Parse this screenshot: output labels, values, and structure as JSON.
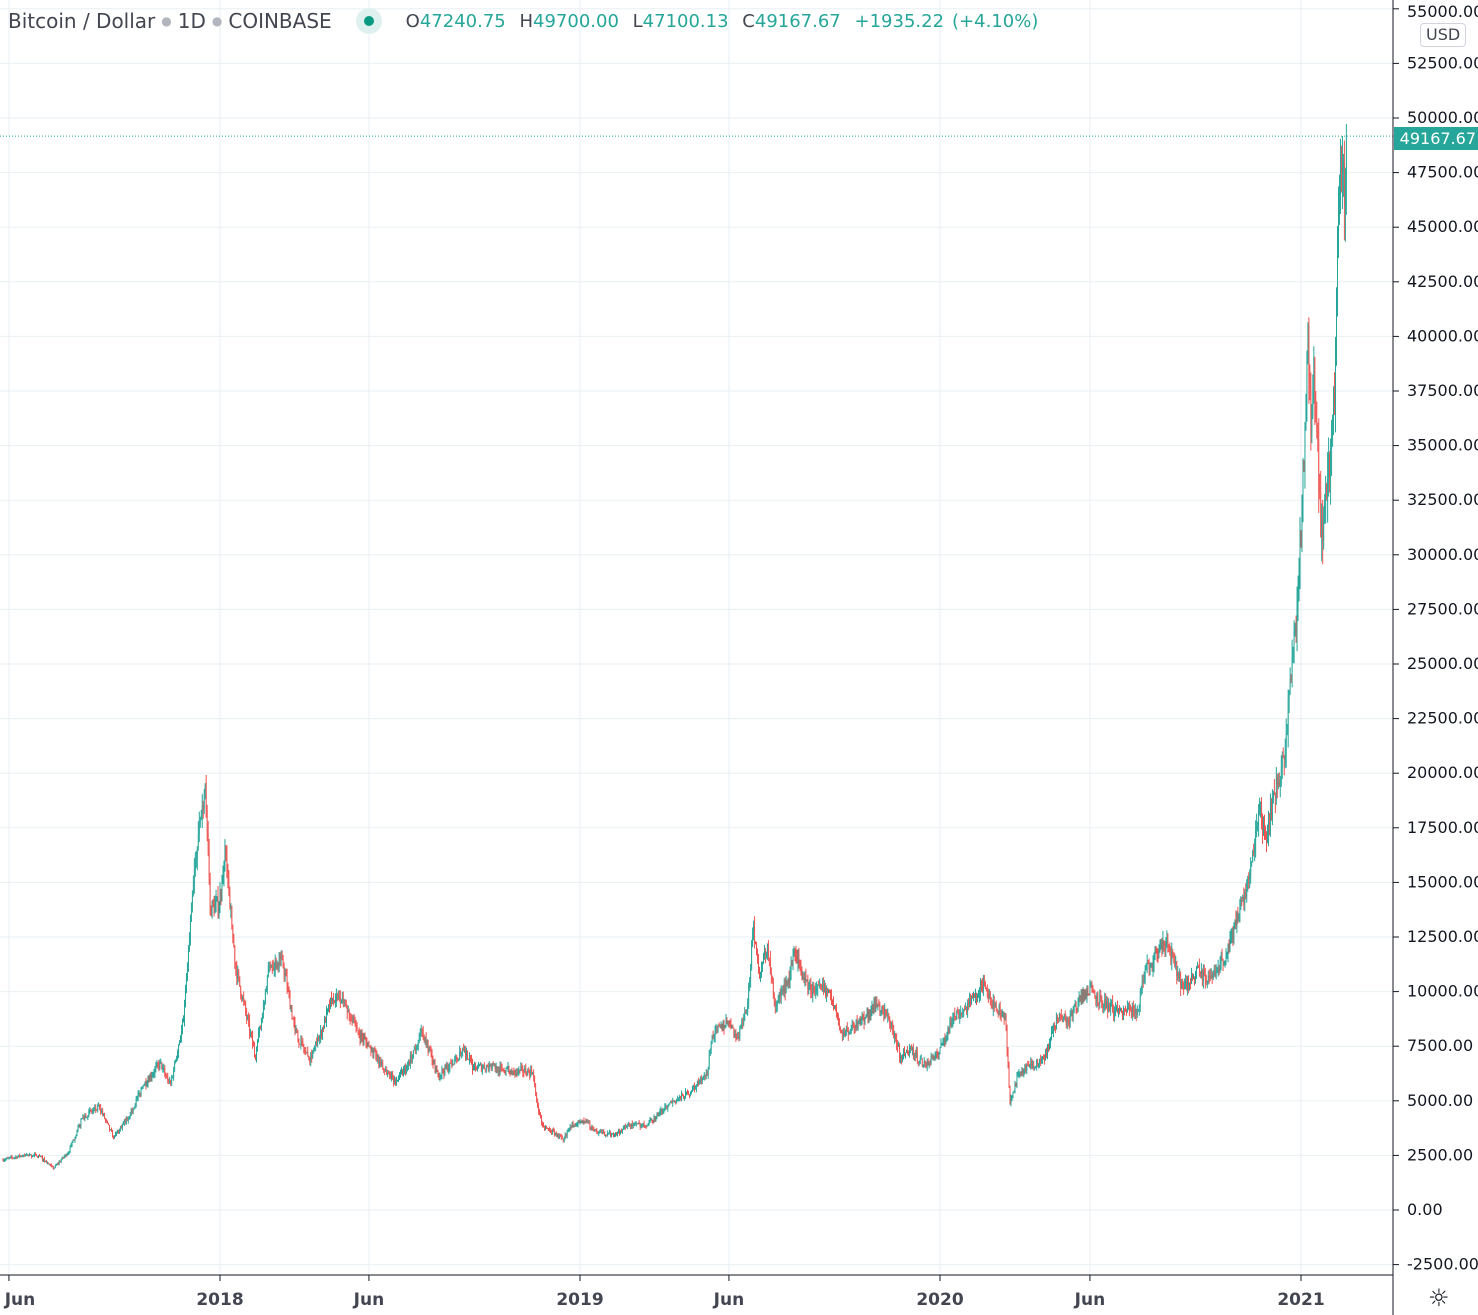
{
  "header": {
    "symbol": "Bitcoin / Dollar",
    "interval": "1D",
    "exchange": "COINBASE",
    "ohlc": {
      "o_label": "O",
      "o": "47240.75",
      "h_label": "H",
      "h": "49700.00",
      "l_label": "L",
      "l": "47100.13",
      "c_label": "C",
      "c": "49167.67",
      "change": "+1935.22",
      "change_pct": "(+4.10%)"
    }
  },
  "currency": "USD",
  "last_price_label": "49167.67",
  "colors": {
    "up": "#26a69a",
    "down": "#ef5350",
    "grid": "#e9eff3",
    "axis": "#131722"
  },
  "icons": {
    "settings": "gear-icon"
  },
  "chart_data": {
    "type": "candlestick",
    "title": "Bitcoin / Dollar · 1D · COINBASE",
    "ylim": [
      -2500,
      55000
    ],
    "y_ticks": [
      "55000.00",
      "52500.00",
      "50000.00",
      "47500.00",
      "45000.00",
      "42500.00",
      "40000.00",
      "37500.00",
      "35000.00",
      "32500.00",
      "30000.00",
      "27500.00",
      "25000.00",
      "22500.00",
      "20000.00",
      "17500.00",
      "15000.00",
      "12500.00",
      "10000.00",
      "7500.00",
      "5000.00",
      "2500.00",
      "0.00",
      "-2500.00"
    ],
    "x_ticks": [
      {
        "label": "Jun",
        "date": "2017-06-01"
      },
      {
        "label": "2018",
        "date": "2018-01-01"
      },
      {
        "label": "Jun",
        "date": "2018-06-01"
      },
      {
        "label": "2019",
        "date": "2019-01-01"
      },
      {
        "label": "Jun",
        "date": "2019-06-01"
      },
      {
        "label": "2020",
        "date": "2020-01-01"
      },
      {
        "label": "Jun",
        "date": "2020-06-01"
      },
      {
        "label": "2021",
        "date": "2021-01-01"
      }
    ],
    "last_price": 49167.67,
    "approx_closes": [
      [
        "2017-05-25",
        2300
      ],
      [
        "2017-06-15",
        2500
      ],
      [
        "2017-07-01",
        2500
      ],
      [
        "2017-07-16",
        1900
      ],
      [
        "2017-08-01",
        2700
      ],
      [
        "2017-08-15",
        4300
      ],
      [
        "2017-09-01",
        4700
      ],
      [
        "2017-09-15",
        3300
      ],
      [
        "2017-10-01",
        4300
      ],
      [
        "2017-10-15",
        5700
      ],
      [
        "2017-11-01",
        6700
      ],
      [
        "2017-11-12",
        5800
      ],
      [
        "2017-11-25",
        8700
      ],
      [
        "2017-12-07",
        16000
      ],
      [
        "2017-12-17",
        19500
      ],
      [
        "2017-12-22",
        13800
      ],
      [
        "2017-12-31",
        14000
      ],
      [
        "2018-01-07",
        16500
      ],
      [
        "2018-01-16",
        11300
      ],
      [
        "2018-02-06",
        7000
      ],
      [
        "2018-02-20",
        11200
      ],
      [
        "2018-03-05",
        11500
      ],
      [
        "2018-03-18",
        8200
      ],
      [
        "2018-04-01",
        6900
      ],
      [
        "2018-04-12",
        7900
      ],
      [
        "2018-04-24",
        9600
      ],
      [
        "2018-05-05",
        9700
      ],
      [
        "2018-05-20",
        8200
      ],
      [
        "2018-06-01",
        7500
      ],
      [
        "2018-06-15",
        6500
      ],
      [
        "2018-06-29",
        5900
      ],
      [
        "2018-07-10",
        6600
      ],
      [
        "2018-07-25",
        8200
      ],
      [
        "2018-08-10",
        6200
      ],
      [
        "2018-08-25",
        6700
      ],
      [
        "2018-09-05",
        7300
      ],
      [
        "2018-09-15",
        6500
      ],
      [
        "2018-10-01",
        6600
      ],
      [
        "2018-10-15",
        6400
      ],
      [
        "2018-11-01",
        6400
      ],
      [
        "2018-11-14",
        6300
      ],
      [
        "2018-11-20",
        4500
      ],
      [
        "2018-11-25",
        3800
      ],
      [
        "2018-12-07",
        3500
      ],
      [
        "2018-12-15",
        3200
      ],
      [
        "2018-12-24",
        4000
      ],
      [
        "2019-01-07",
        4000
      ],
      [
        "2019-01-20",
        3550
      ],
      [
        "2019-02-05",
        3450
      ],
      [
        "2019-02-20",
        3900
      ],
      [
        "2019-03-10",
        3900
      ],
      [
        "2019-04-02",
        4900
      ],
      [
        "2019-04-20",
        5300
      ],
      [
        "2019-05-10",
        6200
      ],
      [
        "2019-05-15",
        8000
      ],
      [
        "2019-05-30",
        8600
      ],
      [
        "2019-06-10",
        7900
      ],
      [
        "2019-06-20",
        9500
      ],
      [
        "2019-06-26",
        13000
      ],
      [
        "2019-07-02",
        10600
      ],
      [
        "2019-07-10",
        12200
      ],
      [
        "2019-07-17",
        9400
      ],
      [
        "2019-08-01",
        10400
      ],
      [
        "2019-08-06",
        11900
      ],
      [
        "2019-08-20",
        10100
      ],
      [
        "2019-09-10",
        10100
      ],
      [
        "2019-09-24",
        8000
      ],
      [
        "2019-10-10",
        8600
      ],
      [
        "2019-10-25",
        9200
      ],
      [
        "2019-10-26",
        9500
      ],
      [
        "2019-11-10",
        8800
      ],
      [
        "2019-11-22",
        7000
      ],
      [
        "2019-12-01",
        7400
      ],
      [
        "2019-12-17",
        6600
      ],
      [
        "2019-12-31",
        7200
      ],
      [
        "2020-01-14",
        8800
      ],
      [
        "2020-02-01",
        9400
      ],
      [
        "2020-02-12",
        10300
      ],
      [
        "2020-02-25",
        9300
      ],
      [
        "2020-03-07",
        8900
      ],
      [
        "2020-03-12",
        4900
      ],
      [
        "2020-03-20",
        6200
      ],
      [
        "2020-04-01",
        6600
      ],
      [
        "2020-04-15",
        6900
      ],
      [
        "2020-04-29",
        8800
      ],
      [
        "2020-05-10",
        8700
      ],
      [
        "2020-05-20",
        9500
      ],
      [
        "2020-06-01",
        10200
      ],
      [
        "2020-06-15",
        9400
      ],
      [
        "2020-07-01",
        9100
      ],
      [
        "2020-07-20",
        9200
      ],
      [
        "2020-07-27",
        11000
      ],
      [
        "2020-08-10",
        11800
      ],
      [
        "2020-08-17",
        12300
      ],
      [
        "2020-09-03",
        10200
      ],
      [
        "2020-09-20",
        10900
      ],
      [
        "2020-10-01",
        10600
      ],
      [
        "2020-10-20",
        11900
      ],
      [
        "2020-10-31",
        13800
      ],
      [
        "2020-11-10",
        15300
      ],
      [
        "2020-11-20",
        18600
      ],
      [
        "2020-11-26",
        17000
      ],
      [
        "2020-12-05",
        19000
      ],
      [
        "2020-12-16",
        21000
      ],
      [
        "2020-12-20",
        23800
      ],
      [
        "2020-12-27",
        26500
      ],
      [
        "2021-01-02",
        32000
      ],
      [
        "2021-01-08",
        40500
      ],
      [
        "2021-01-11",
        35500
      ],
      [
        "2021-01-14",
        39000
      ],
      [
        "2021-01-21",
        30800
      ],
      [
        "2021-01-28",
        33500
      ],
      [
        "2021-02-04",
        37000
      ],
      [
        "2021-02-08",
        46000
      ],
      [
        "2021-02-15",
        47240.75
      ],
      [
        "2021-02-16",
        49167.67
      ]
    ]
  }
}
